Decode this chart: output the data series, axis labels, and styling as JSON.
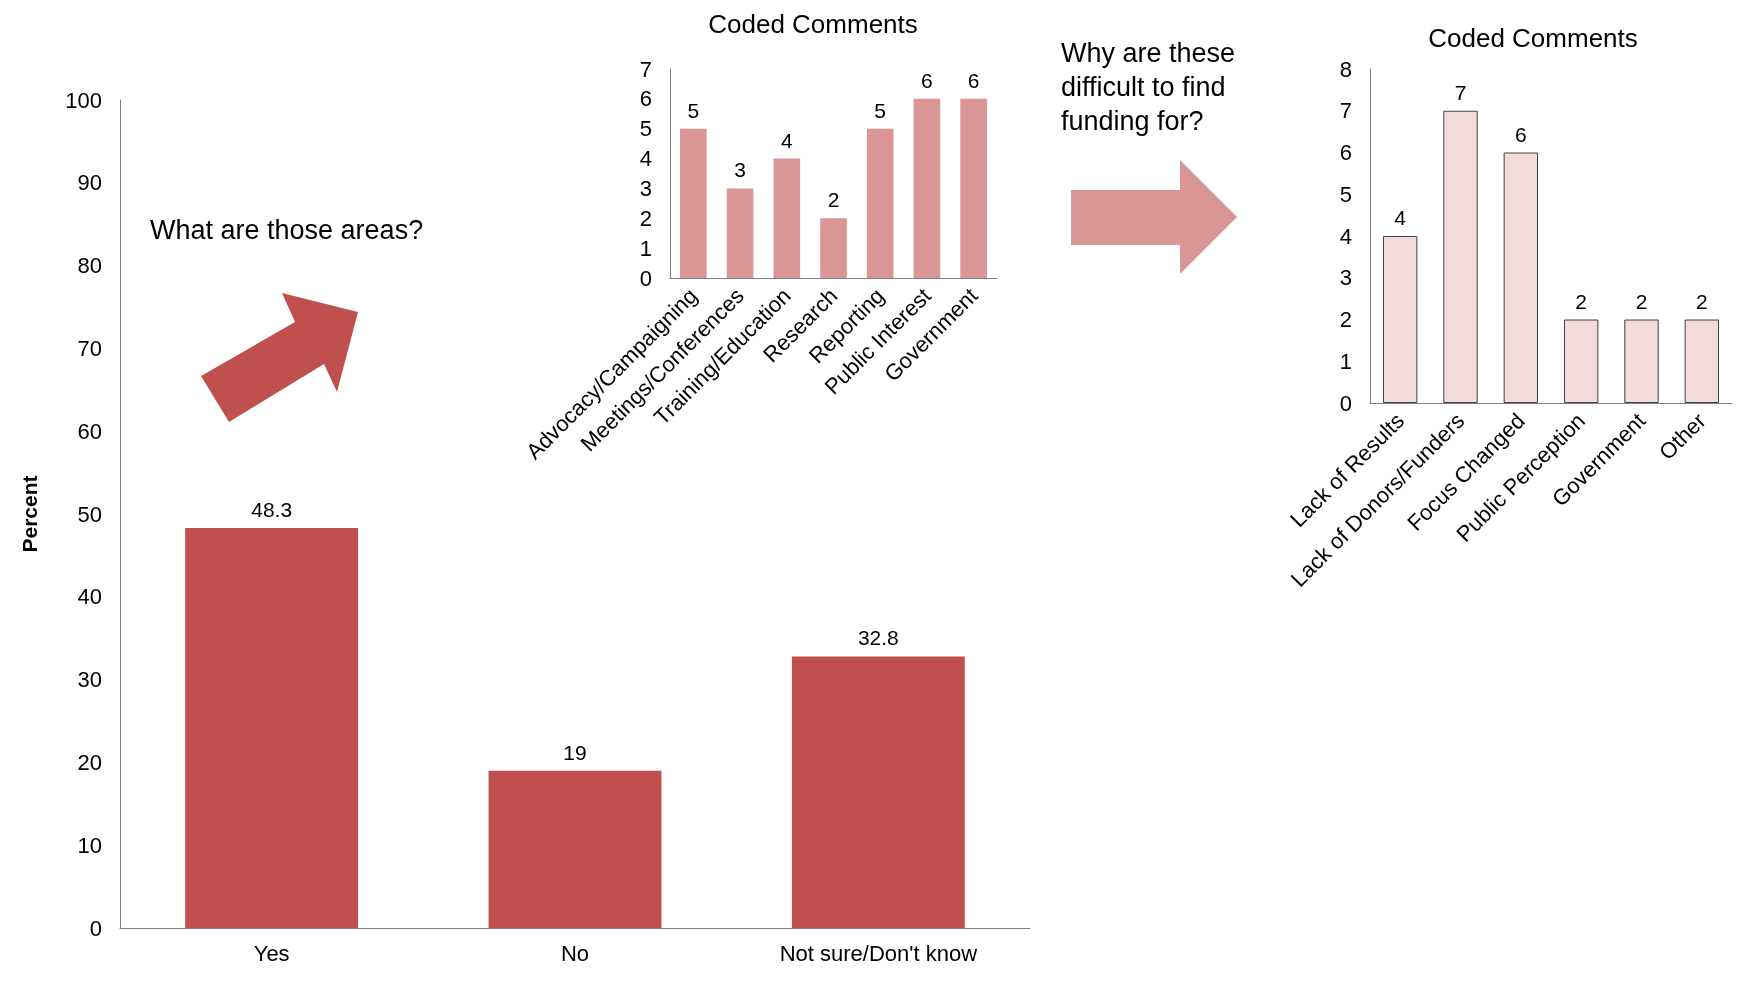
{
  "chart_data": [
    {
      "type": "bar",
      "categories": [
        "Yes",
        "No",
        "Not sure/Don't know"
      ],
      "values": [
        48.3,
        19,
        32.8
      ],
      "color": "#c0504d",
      "ylabel": "Percent",
      "ylim": [
        0,
        100
      ],
      "yticks": [
        0,
        10,
        20,
        30,
        40,
        50,
        60,
        70,
        80,
        90,
        100
      ],
      "grid": false,
      "data_labels": true,
      "annotations": [
        "What are those areas?"
      ]
    },
    {
      "type": "bar",
      "title": "Coded Comments",
      "categories": [
        "Advocacy/Campaigning",
        "Meetings/Conferences",
        "Training/Education",
        "Research",
        "Reporting",
        "Public Interest",
        "Government"
      ],
      "values": [
        5,
        3,
        4,
        2,
        5,
        6,
        6
      ],
      "color": "#d99694",
      "ylim": [
        0,
        7
      ],
      "yticks": [
        0,
        1,
        2,
        3,
        4,
        5,
        6,
        7
      ],
      "grid": false,
      "data_labels": true
    },
    {
      "type": "bar",
      "title": "Coded Comments",
      "categories": [
        "Lack of Results",
        "Lack of Donors/Funders",
        "Focus Changed",
        "Public Perception",
        "Government",
        "Other"
      ],
      "values": [
        4,
        7,
        6,
        2,
        2,
        2
      ],
      "color": "#f2dcdb",
      "ylim": [
        0,
        8
      ],
      "yticks": [
        0,
        1,
        2,
        3,
        4,
        5,
        6,
        7,
        8
      ],
      "grid": false,
      "data_labels": true,
      "annotations": [
        "Why are these difficult to find funding for?"
      ]
    }
  ]
}
